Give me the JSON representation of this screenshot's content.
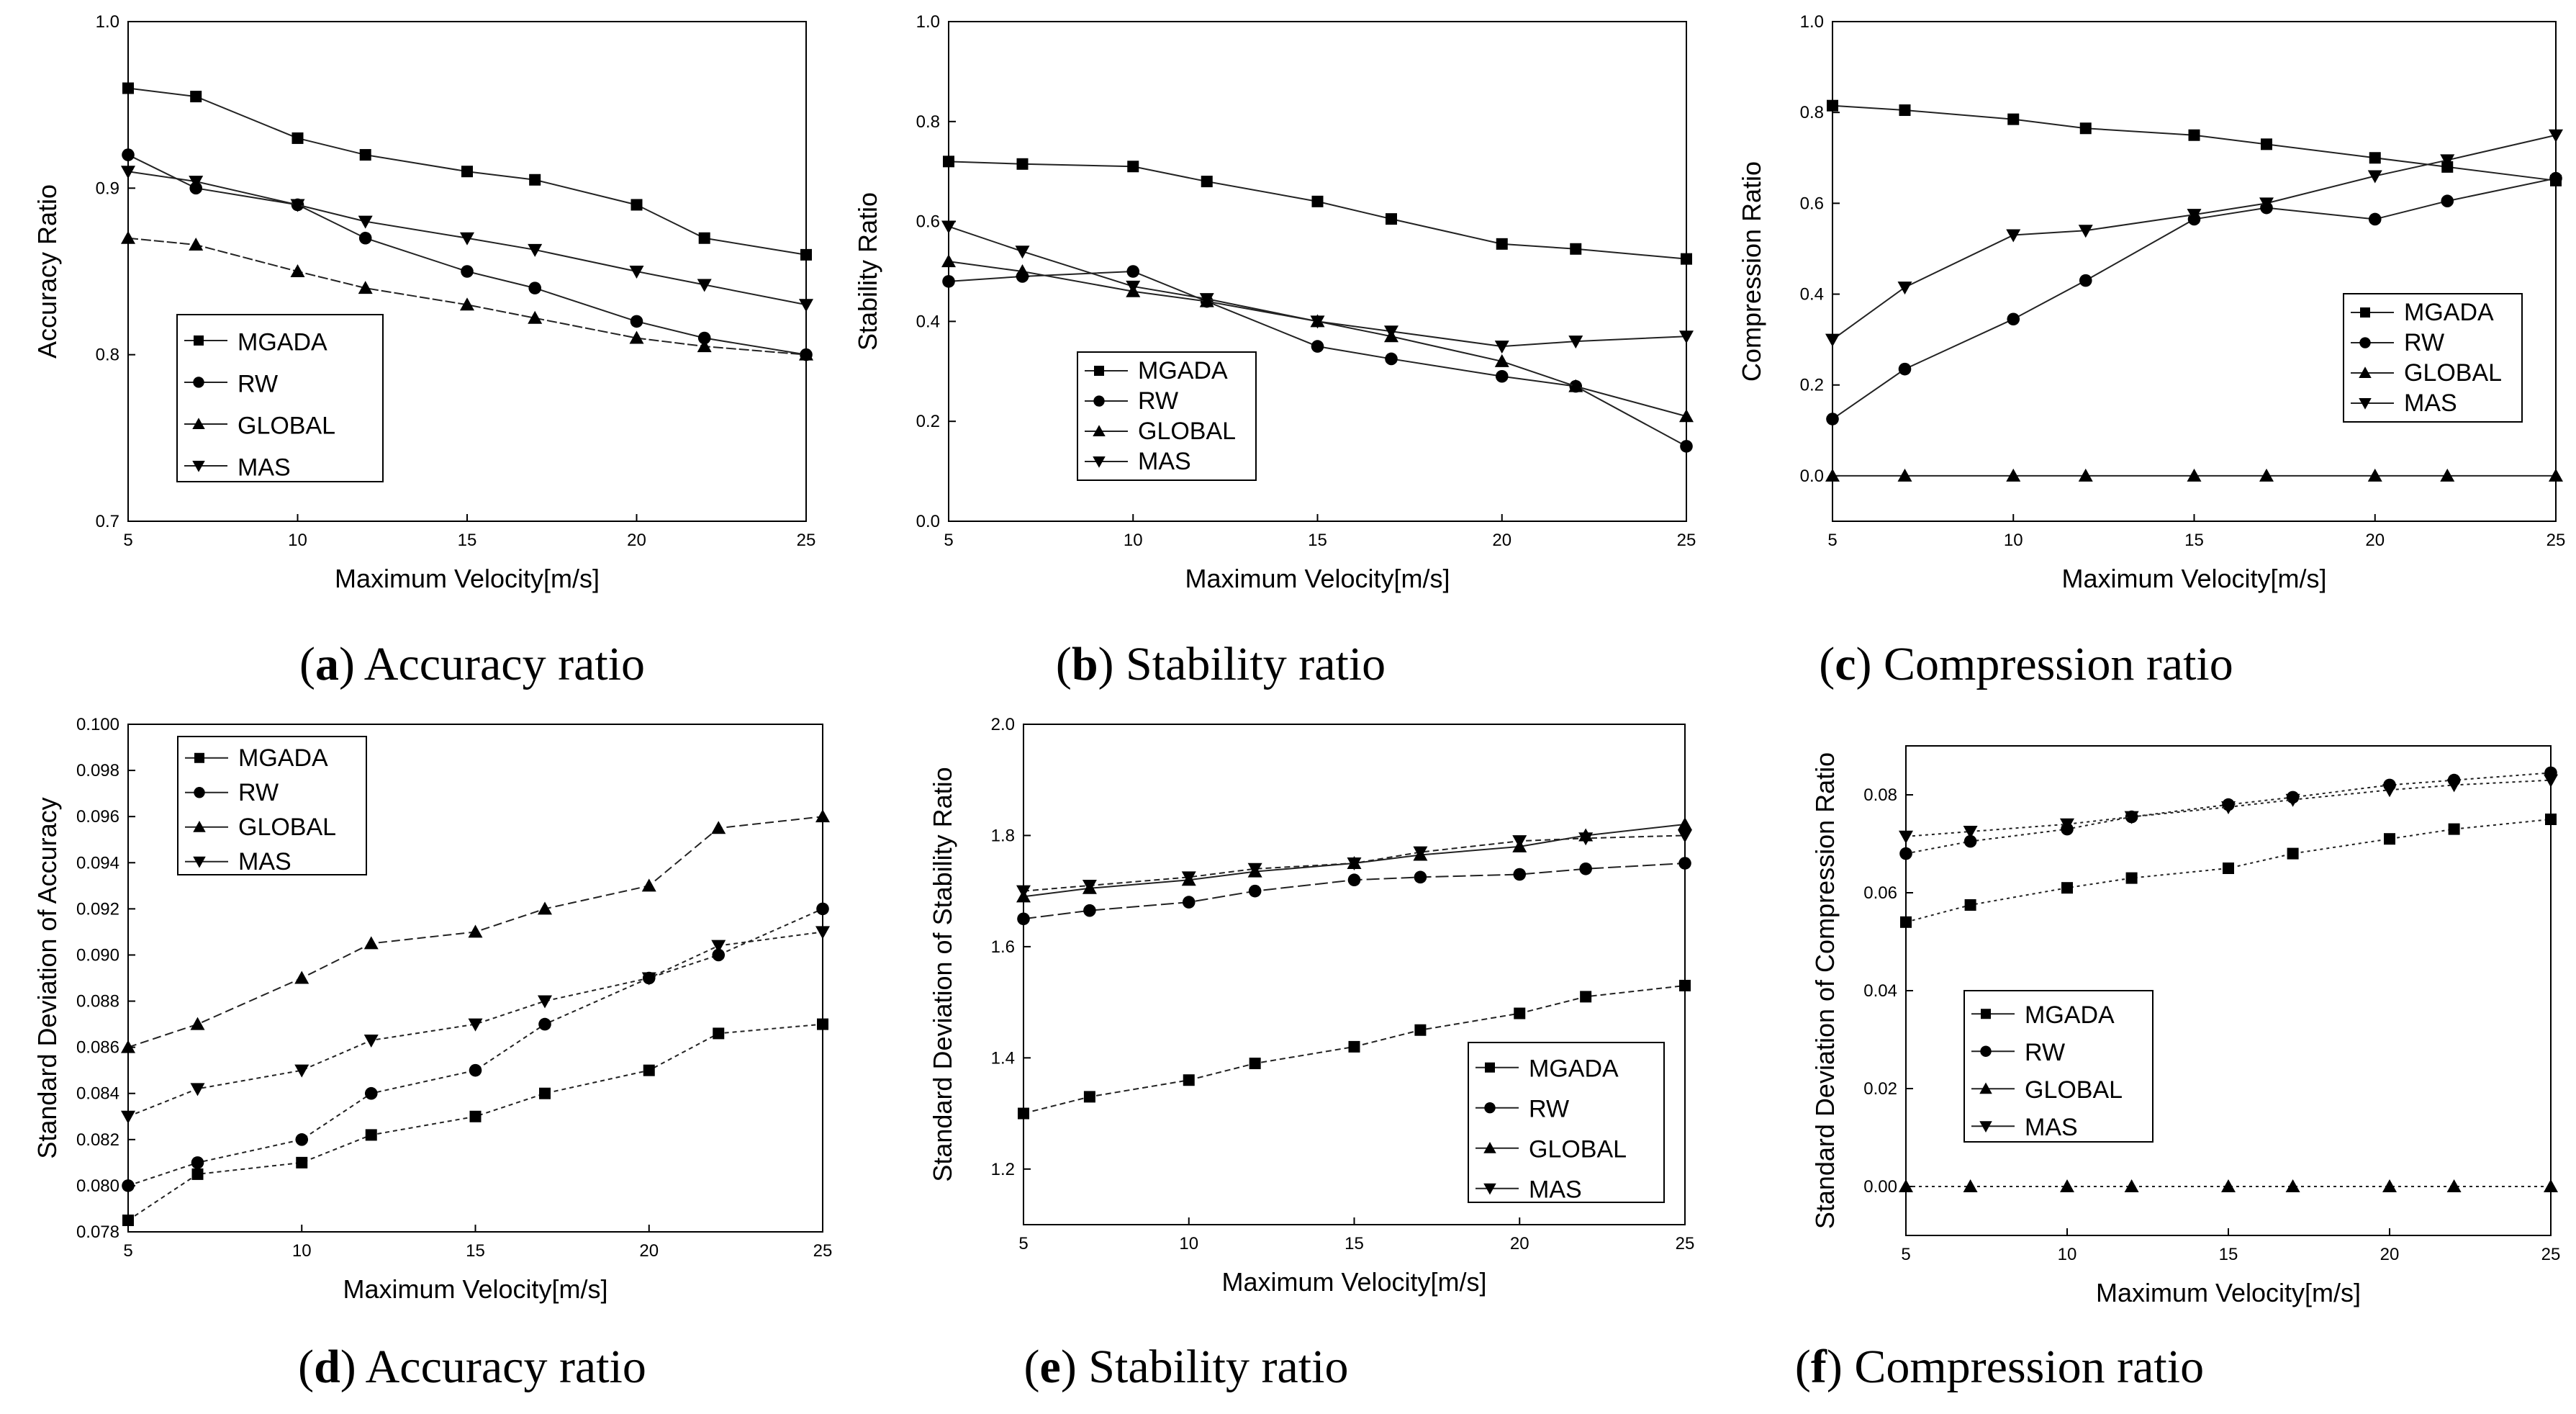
{
  "chart_data": [
    {
      "type": "line",
      "caption": {
        "open": "(",
        "letter": "a",
        "text": ") Accuracy ratio"
      },
      "xlabel": "Maximum Velocity[m/s]",
      "ylabel": "Accuracy Ratio",
      "xlim": [
        5,
        25
      ],
      "ylim": [
        0.7,
        1.0
      ],
      "xticks": [
        "5",
        "10",
        "15",
        "20",
        "25"
      ],
      "yticks": [
        "0.7",
        "0.8",
        "0.9",
        "1.0"
      ],
      "x": [
        5,
        7,
        10,
        12,
        15,
        17,
        20,
        22,
        25
      ],
      "legend_position": "bottom-left",
      "series": [
        {
          "name": "MGADA",
          "marker": "square",
          "values": [
            0.96,
            0.955,
            0.93,
            0.92,
            0.91,
            0.905,
            0.89,
            0.87,
            0.86
          ]
        },
        {
          "name": "RW",
          "marker": "circle",
          "values": [
            0.92,
            0.9,
            0.89,
            0.87,
            0.85,
            0.84,
            0.82,
            0.81,
            0.8
          ]
        },
        {
          "name": "GLOBAL",
          "marker": "triangle-up",
          "values": [
            0.87,
            0.866,
            0.85,
            0.84,
            0.83,
            0.822,
            0.81,
            0.805,
            0.8
          ]
        },
        {
          "name": "MAS",
          "marker": "triangle-down",
          "values": [
            0.91,
            0.904,
            0.89,
            0.88,
            0.87,
            0.863,
            0.85,
            0.842,
            0.83
          ]
        }
      ]
    },
    {
      "type": "line",
      "caption": {
        "open": "(",
        "letter": "b",
        "text": ") Stability ratio"
      },
      "xlabel": "Maximum Velocity[m/s]",
      "ylabel": "Stability Ratio",
      "xlim": [
        5,
        25
      ],
      "ylim": [
        0.0,
        1.0
      ],
      "xticks": [
        "5",
        "10",
        "15",
        "20",
        "25"
      ],
      "yticks": [
        "0.0",
        "0.2",
        "0.4",
        "0.6",
        "0.8",
        "1.0"
      ],
      "x": [
        5,
        7,
        10,
        12,
        15,
        17,
        20,
        22,
        25
      ],
      "legend_position": "bottom-left",
      "series": [
        {
          "name": "MGADA",
          "marker": "square",
          "values": [
            0.72,
            0.715,
            0.71,
            0.68,
            0.64,
            0.605,
            0.555,
            0.545,
            0.525
          ]
        },
        {
          "name": "RW",
          "marker": "circle",
          "values": [
            0.48,
            0.49,
            0.5,
            0.44,
            0.35,
            0.325,
            0.29,
            0.27,
            0.15
          ]
        },
        {
          "name": "GLOBAL",
          "marker": "triangle-up",
          "values": [
            0.52,
            0.5,
            0.46,
            0.44,
            0.4,
            0.37,
            0.32,
            0.27,
            0.21
          ]
        },
        {
          "name": "MAS",
          "marker": "triangle-down",
          "values": [
            0.59,
            0.54,
            0.47,
            0.445,
            0.4,
            0.38,
            0.35,
            0.36,
            0.37
          ]
        }
      ]
    },
    {
      "type": "line",
      "caption": {
        "open": "(",
        "letter": "c",
        "text": ") Compression ratio"
      },
      "xlabel": "Maximum Velocity[m/s]",
      "ylabel": "Compression Ratio",
      "xlim": [
        5,
        25
      ],
      "ylim": [
        -0.1,
        1.0
      ],
      "xticks": [
        "5",
        "10",
        "15",
        "20",
        "25"
      ],
      "yticks": [
        "0.0",
        "0.2",
        "0.4",
        "0.6",
        "0.8",
        "1.0"
      ],
      "x": [
        5,
        7,
        10,
        12,
        15,
        17,
        20,
        22,
        25
      ],
      "legend_position": "right",
      "series": [
        {
          "name": "MGADA",
          "marker": "square",
          "values": [
            0.815,
            0.805,
            0.785,
            0.765,
            0.75,
            0.73,
            0.7,
            0.68,
            0.65
          ]
        },
        {
          "name": "RW",
          "marker": "circle",
          "values": [
            0.125,
            0.235,
            0.345,
            0.43,
            0.565,
            0.59,
            0.565,
            0.605,
            0.655
          ]
        },
        {
          "name": "GLOBAL",
          "marker": "triangle-up",
          "values": [
            0.0,
            0.0,
            0.0,
            0.0,
            0.0,
            0.0,
            0.0,
            0.0,
            0.0
          ]
        },
        {
          "name": "MAS",
          "marker": "triangle-down",
          "values": [
            0.3,
            0.415,
            0.53,
            0.54,
            0.575,
            0.6,
            0.66,
            0.695,
            0.75
          ]
        }
      ]
    },
    {
      "type": "line",
      "caption": {
        "open": "(",
        "letter": "d",
        "text": ") Accuracy ratio"
      },
      "xlabel": "Maximum Velocity[m/s]",
      "ylabel": "Standard Deviation of Accuracy",
      "xlim": [
        5,
        25
      ],
      "ylim": [
        0.078,
        0.1
      ],
      "xticks": [
        "5",
        "10",
        "15",
        "20",
        "25"
      ],
      "yticks": [
        "0.078",
        "0.080",
        "0.082",
        "0.084",
        "0.086",
        "0.088",
        "0.090",
        "0.092",
        "0.094",
        "0.096",
        "0.098",
        "0.100"
      ],
      "x": [
        5,
        7,
        10,
        12,
        15,
        17,
        20,
        22,
        25
      ],
      "legend_position": "top-left",
      "series": [
        {
          "name": "MGADA",
          "marker": "square",
          "values": [
            0.0785,
            0.0805,
            0.081,
            0.0822,
            0.083,
            0.084,
            0.085,
            0.0866,
            0.087
          ]
        },
        {
          "name": "RW",
          "marker": "circle",
          "values": [
            0.08,
            0.081,
            0.082,
            0.084,
            0.085,
            0.087,
            0.089,
            0.09,
            0.092
          ]
        },
        {
          "name": "GLOBAL",
          "marker": "triangle-up",
          "values": [
            0.086,
            0.087,
            0.089,
            0.0905,
            0.091,
            0.092,
            0.093,
            0.0955,
            0.096
          ]
        },
        {
          "name": "MAS",
          "marker": "triangle-down",
          "values": [
            0.083,
            0.0842,
            0.085,
            0.0863,
            0.087,
            0.088,
            0.089,
            0.0904,
            0.091
          ]
        }
      ]
    },
    {
      "type": "line",
      "caption": {
        "open": "(",
        "letter": "e",
        "text": ") Stability ratio"
      },
      "xlabel": "Maximum Velocity[m/s]",
      "ylabel": "Standard Deviation of Stability Ratio",
      "xlim": [
        5,
        25
      ],
      "ylim": [
        1.1,
        2.0
      ],
      "xticks": [
        "5",
        "10",
        "15",
        "20",
        "25"
      ],
      "yticks": [
        "1.2",
        "1.4",
        "1.6",
        "1.8",
        "2.0"
      ],
      "x": [
        5,
        7,
        10,
        12,
        15,
        17,
        20,
        22,
        25
      ],
      "legend_position": "bottom-right",
      "series": [
        {
          "name": "MGADA",
          "marker": "square",
          "values": [
            1.3,
            1.33,
            1.36,
            1.39,
            1.42,
            1.45,
            1.48,
            1.51,
            1.53
          ]
        },
        {
          "name": "RW",
          "marker": "circle",
          "values": [
            1.65,
            1.665,
            1.68,
            1.7,
            1.72,
            1.725,
            1.73,
            1.74,
            1.75
          ]
        },
        {
          "name": "GLOBAL",
          "marker": "triangle-up",
          "values": [
            1.69,
            1.705,
            1.72,
            1.735,
            1.75,
            1.765,
            1.78,
            1.8,
            1.82
          ]
        },
        {
          "name": "MAS",
          "marker": "triangle-down",
          "values": [
            1.7,
            1.71,
            1.725,
            1.74,
            1.75,
            1.77,
            1.79,
            1.795,
            1.8
          ]
        }
      ]
    },
    {
      "type": "line",
      "caption": {
        "open": "(",
        "letter": "f",
        "text": ") Compression ratio"
      },
      "xlabel": "Maximum Velocity[m/s]",
      "ylabel": "Standard Deviation of Compression Ratio",
      "xlim": [
        5,
        25
      ],
      "ylim": [
        -0.01,
        0.09
      ],
      "xticks": [
        "5",
        "10",
        "15",
        "20",
        "25"
      ],
      "yticks": [
        "0.00",
        "0.02",
        "0.04",
        "0.06",
        "0.08"
      ],
      "x": [
        5,
        7,
        10,
        12,
        15,
        17,
        20,
        22,
        25
      ],
      "legend_position": "bottom-left",
      "series": [
        {
          "name": "MGADA",
          "marker": "square",
          "values": [
            0.054,
            0.0575,
            0.061,
            0.063,
            0.065,
            0.068,
            0.071,
            0.073,
            0.075
          ]
        },
        {
          "name": "RW",
          "marker": "circle",
          "values": [
            0.068,
            0.0705,
            0.073,
            0.0755,
            0.078,
            0.0795,
            0.082,
            0.083,
            0.0845
          ]
        },
        {
          "name": "GLOBAL",
          "marker": "triangle-up",
          "values": [
            0.0,
            0.0,
            0.0,
            0.0,
            0.0,
            0.0,
            0.0,
            0.0,
            0.0
          ]
        },
        {
          "name": "MAS",
          "marker": "triangle-down",
          "values": [
            0.0715,
            0.0725,
            0.074,
            0.0755,
            0.0775,
            0.079,
            0.081,
            0.082,
            0.083
          ]
        }
      ]
    }
  ]
}
